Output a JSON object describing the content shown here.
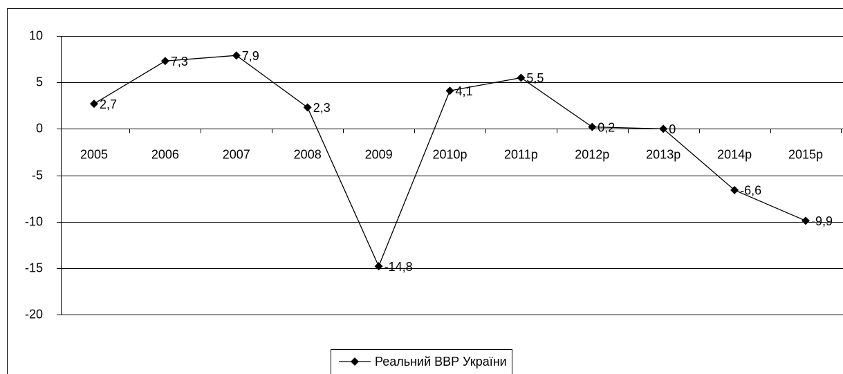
{
  "chart_data": {
    "type": "line",
    "categories": [
      "2005",
      "2006",
      "2007",
      "2008",
      "2009",
      "2010р",
      "2011р",
      "2012р",
      "2013р",
      "2014р",
      "2015р"
    ],
    "series": [
      {
        "name": "Реальний ВВР України",
        "color": "#000000",
        "values": [
          2.7,
          7.3,
          7.9,
          2.3,
          -14.8,
          4.1,
          5.5,
          0.2,
          0,
          -6.6,
          -9.9
        ],
        "value_labels": [
          "2,7",
          "7,3",
          "7,9",
          "2,3",
          "-14,8",
          "4,1",
          "5,5",
          "0,2",
          "0",
          "-6,6",
          "-9,9"
        ]
      }
    ],
    "ylim": [
      -20,
      10
    ],
    "yticks": [
      -20,
      -15,
      -10,
      -5,
      0,
      5,
      10
    ],
    "grid": true,
    "legend": "bottom"
  }
}
